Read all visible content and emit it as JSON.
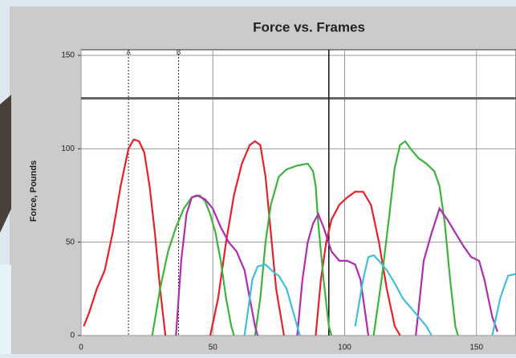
{
  "chart_data": {
    "type": "line",
    "title": "Force vs. Frames",
    "y_label": "Force, Pounds",
    "xlim": [
      0,
      165
    ],
    "ylim": [
      0,
      150
    ],
    "xticks": [
      0,
      50,
      100,
      150
    ],
    "yticks": [
      0,
      50,
      100,
      150
    ],
    "grid": true,
    "markers": [
      {
        "label": "A",
        "x": 18
      },
      {
        "label": "B",
        "x": 37
      }
    ],
    "hline": 127,
    "vline": 94,
    "series": [
      {
        "color": "#e8202a",
        "x": [
          1,
          3,
          6,
          9,
          12,
          15,
          18,
          20,
          22,
          24,
          26,
          28,
          30,
          32,
          null,
          49,
          52,
          55,
          58,
          61,
          64,
          66,
          68,
          70,
          72,
          74,
          77,
          null,
          89,
          91,
          93,
          95,
          98,
          101,
          104,
          107,
          110,
          113,
          116,
          119,
          121
        ],
        "values": [
          5,
          12,
          25,
          35,
          55,
          80,
          100,
          105,
          104,
          98,
          80,
          55,
          25,
          0,
          null,
          0,
          20,
          50,
          75,
          92,
          102,
          104,
          102,
          85,
          55,
          25,
          0,
          null,
          0,
          30,
          50,
          62,
          70,
          74,
          77,
          77,
          70,
          50,
          25,
          5,
          0
        ]
      },
      {
        "color": "#3cb43c",
        "x": [
          27,
          30,
          33,
          36,
          39,
          42,
          45,
          47,
          49,
          51,
          53,
          55,
          57,
          58,
          null,
          66,
          68,
          70,
          72,
          75,
          78,
          82,
          86,
          88,
          89,
          90,
          92,
          94,
          95,
          null,
          111,
          114,
          117,
          119,
          121,
          123,
          125,
          128,
          131,
          134,
          136,
          138,
          140,
          142,
          143
        ],
        "values": [
          0,
          25,
          45,
          58,
          68,
          74,
          75,
          72,
          65,
          55,
          40,
          20,
          5,
          0,
          null,
          0,
          20,
          50,
          70,
          85,
          89,
          91,
          92,
          88,
          80,
          60,
          30,
          5,
          0,
          null,
          0,
          30,
          65,
          90,
          102,
          104,
          100,
          95,
          92,
          88,
          80,
          60,
          30,
          5,
          0
        ]
      },
      {
        "color": "#b02cb0",
        "x": [
          36,
          38,
          40,
          42,
          44,
          47,
          50,
          53,
          56,
          59,
          62,
          64,
          66,
          67,
          null,
          82,
          84,
          86,
          88,
          90,
          92,
          95,
          98,
          101,
          104,
          106,
          108,
          109,
          null,
          127,
          130,
          133,
          136,
          139,
          142,
          145,
          148,
          151,
          153,
          156,
          158
        ],
        "values": [
          0,
          40,
          65,
          74,
          75,
          73,
          68,
          58,
          50,
          45,
          35,
          20,
          5,
          0,
          null,
          0,
          30,
          50,
          60,
          65,
          58,
          45,
          40,
          40,
          38,
          30,
          10,
          0,
          null,
          0,
          40,
          55,
          68,
          62,
          55,
          48,
          42,
          40,
          30,
          10,
          2
        ]
      },
      {
        "color": "#40c0d8",
        "x": [
          62,
          65,
          67,
          70,
          73,
          75,
          78,
          81,
          83,
          null,
          104,
          107,
          109,
          111,
          113,
          116,
          119,
          122,
          125,
          128,
          131,
          133,
          null,
          156,
          159,
          162,
          165
        ],
        "values": [
          0,
          30,
          37,
          38,
          34,
          32,
          25,
          10,
          0,
          null,
          5,
          30,
          42,
          43,
          40,
          35,
          28,
          20,
          15,
          10,
          5,
          0,
          null,
          0,
          20,
          32,
          33
        ]
      }
    ]
  }
}
